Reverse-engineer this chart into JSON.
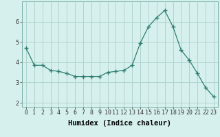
{
  "x": [
    0,
    1,
    2,
    3,
    4,
    5,
    6,
    7,
    8,
    9,
    10,
    11,
    12,
    13,
    14,
    15,
    16,
    17,
    18,
    19,
    20,
    21,
    22,
    23
  ],
  "y": [
    4.7,
    3.85,
    3.85,
    3.6,
    3.55,
    3.45,
    3.3,
    3.3,
    3.3,
    3.3,
    3.5,
    3.55,
    3.6,
    3.85,
    4.95,
    5.75,
    6.2,
    6.55,
    5.75,
    4.6,
    4.1,
    3.45,
    2.75,
    2.3
  ],
  "line_color": "#2d7d6e",
  "marker": "+",
  "marker_size": 4,
  "background_color": "#d6f0ee",
  "grid_color": "#afd4cf",
  "xlabel": "Humidex (Indice chaleur)",
  "xlabel_fontsize": 7.5,
  "tick_fontsize": 6,
  "xlim": [
    -0.5,
    23.5
  ],
  "ylim": [
    1.8,
    7.0
  ],
  "yticks": [
    2,
    3,
    4,
    5,
    6
  ],
  "xticks": [
    0,
    1,
    2,
    3,
    4,
    5,
    6,
    7,
    8,
    9,
    10,
    11,
    12,
    13,
    14,
    15,
    16,
    17,
    18,
    19,
    20,
    21,
    22,
    23
  ]
}
